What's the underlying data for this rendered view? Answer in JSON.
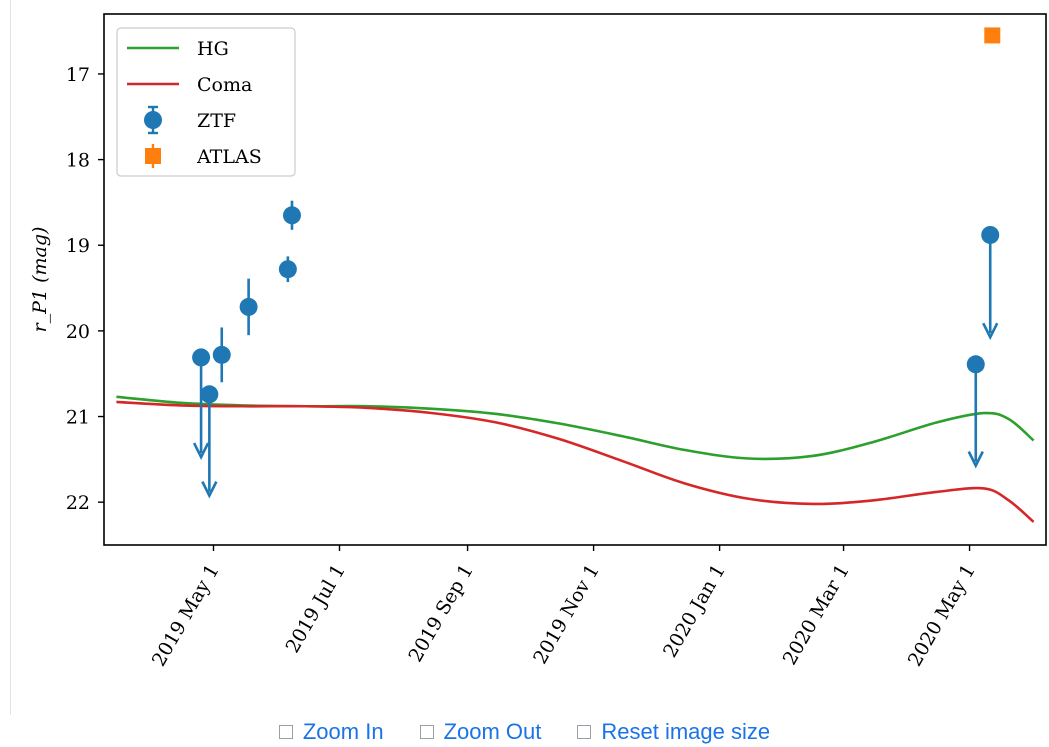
{
  "chart_data": {
    "type": "scatter",
    "title": "",
    "xlabel": "",
    "ylabel": "r_P1 (mag)",
    "y_inverted": true,
    "ylim": [
      22.5,
      16.3
    ],
    "xlim": [
      "2019-03-09",
      "2020-06-07"
    ],
    "grid": false,
    "legend_position": "top-left",
    "x_ticks": [
      "2019-05-01",
      "2019-07-01",
      "2019-09-01",
      "2019-11-01",
      "2020-01-01",
      "2020-03-01",
      "2020-05-01"
    ],
    "x_tick_labels": [
      "2019 May 1",
      "2019 Jul 1",
      "2019 Sep 1",
      "2019 Nov 1",
      "2020 Jan 1",
      "2020 Mar 1",
      "2020 May 1"
    ],
    "y_ticks": [
      17,
      18,
      19,
      20,
      21,
      22
    ],
    "y_tick_labels": [
      "17",
      "18",
      "19",
      "20",
      "21",
      "22"
    ],
    "series": [
      {
        "name": "HG",
        "kind": "line",
        "color": "#2ca02c",
        "points": [
          {
            "x": "2019-03-15",
            "y": 20.77
          },
          {
            "x": "2019-04-15",
            "y": 20.84
          },
          {
            "x": "2019-05-15",
            "y": 20.87
          },
          {
            "x": "2019-06-15",
            "y": 20.88
          },
          {
            "x": "2019-07-15",
            "y": 20.88
          },
          {
            "x": "2019-08-15",
            "y": 20.91
          },
          {
            "x": "2019-09-15",
            "y": 20.97
          },
          {
            "x": "2019-10-15",
            "y": 21.08
          },
          {
            "x": "2019-11-15",
            "y": 21.23
          },
          {
            "x": "2019-12-15",
            "y": 21.39
          },
          {
            "x": "2020-01-15",
            "y": 21.49
          },
          {
            "x": "2020-02-15",
            "y": 21.46
          },
          {
            "x": "2020-03-15",
            "y": 21.3
          },
          {
            "x": "2020-04-15",
            "y": 21.07
          },
          {
            "x": "2020-05-08",
            "y": 20.96
          },
          {
            "x": "2020-05-20",
            "y": 21.03
          },
          {
            "x": "2020-06-01",
            "y": 21.28
          }
        ]
      },
      {
        "name": "Coma",
        "kind": "line",
        "color": "#d62728",
        "points": [
          {
            "x": "2019-03-15",
            "y": 20.83
          },
          {
            "x": "2019-04-15",
            "y": 20.87
          },
          {
            "x": "2019-05-15",
            "y": 20.88
          },
          {
            "x": "2019-06-15",
            "y": 20.88
          },
          {
            "x": "2019-07-15",
            "y": 20.9
          },
          {
            "x": "2019-08-15",
            "y": 20.96
          },
          {
            "x": "2019-09-15",
            "y": 21.07
          },
          {
            "x": "2019-10-15",
            "y": 21.26
          },
          {
            "x": "2019-11-15",
            "y": 21.52
          },
          {
            "x": "2019-12-15",
            "y": 21.78
          },
          {
            "x": "2020-01-15",
            "y": 21.96
          },
          {
            "x": "2020-02-15",
            "y": 22.02
          },
          {
            "x": "2020-03-15",
            "y": 21.98
          },
          {
            "x": "2020-04-15",
            "y": 21.88
          },
          {
            "x": "2020-05-08",
            "y": 21.84
          },
          {
            "x": "2020-05-20",
            "y": 21.98
          },
          {
            "x": "2020-06-01",
            "y": 22.23
          }
        ]
      },
      {
        "name": "ZTF",
        "kind": "errorbar",
        "color": "#1f77b4",
        "points": [
          {
            "x": "2019-04-25",
            "y": 20.31,
            "upper_limit_to": 21.45
          },
          {
            "x": "2019-04-29",
            "y": 20.74,
            "err": 0.1,
            "upper_limit_to": 21.9
          },
          {
            "x": "2019-05-05",
            "y": 20.28,
            "err": 0.32
          },
          {
            "x": "2019-05-18",
            "y": 19.72,
            "err": 0.33
          },
          {
            "x": "2019-06-06",
            "y": 19.28,
            "err": 0.15
          },
          {
            "x": "2019-06-08",
            "y": 18.65,
            "err": 0.17
          },
          {
            "x": "2020-05-04",
            "y": 20.39,
            "upper_limit_to": 21.55
          },
          {
            "x": "2020-05-11",
            "y": 18.88,
            "upper_limit_to": 20.05
          }
        ]
      },
      {
        "name": "ATLAS",
        "kind": "errorbar",
        "color": "#ff7f0e",
        "marker": "square",
        "points": [
          {
            "x": "2020-05-12",
            "y": 16.55
          }
        ]
      }
    ]
  },
  "controls": {
    "zoom_in": "Zoom In",
    "zoom_out": "Zoom Out",
    "reset": "Reset image size"
  }
}
